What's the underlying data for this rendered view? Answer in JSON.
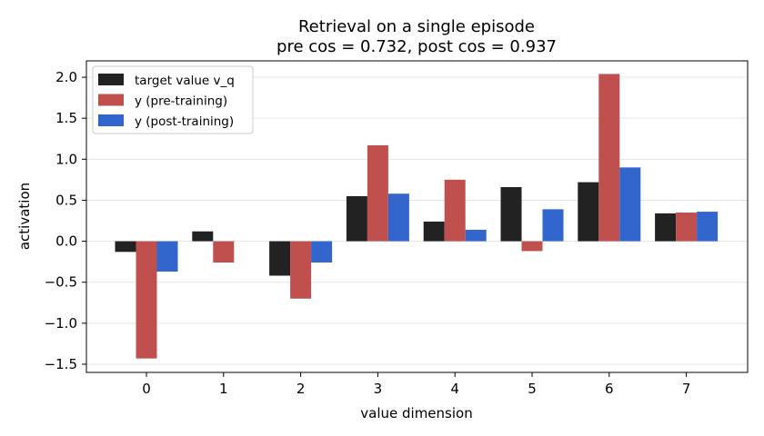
{
  "chart_data": {
    "type": "bar",
    "title": [
      "Retrieval on a single episode",
      "pre cos = 0.732,  post cos = 0.937"
    ],
    "xlabel": "value dimension",
    "ylabel": "activation",
    "categories": [
      "0",
      "1",
      "2",
      "3",
      "4",
      "5",
      "6",
      "7"
    ],
    "ylim": [
      -1.6,
      2.2
    ],
    "yticks": [
      -1.5,
      -1.0,
      -0.5,
      0.0,
      0.5,
      1.0,
      1.5,
      2.0
    ],
    "ytick_labels": [
      "−1.5",
      "−1.0",
      "−0.5",
      "0.0",
      "0.5",
      "1.0",
      "1.5",
      "2.0"
    ],
    "grid": "horizontal",
    "legend_position": "top-left",
    "series": [
      {
        "name": "target value v_q",
        "color": "#222222",
        "values": [
          -0.13,
          0.12,
          -0.42,
          0.55,
          0.24,
          0.66,
          0.72,
          0.34
        ]
      },
      {
        "name": "y (pre-training)",
        "color": "#c0504d",
        "values": [
          -1.43,
          -0.26,
          -0.7,
          1.17,
          0.75,
          -0.12,
          2.04,
          0.35
        ]
      },
      {
        "name": "y (post-training)",
        "color": "#3366cc",
        "values": [
          -0.37,
          0.0,
          -0.26,
          0.58,
          0.14,
          0.39,
          0.9,
          0.36
        ]
      }
    ]
  }
}
